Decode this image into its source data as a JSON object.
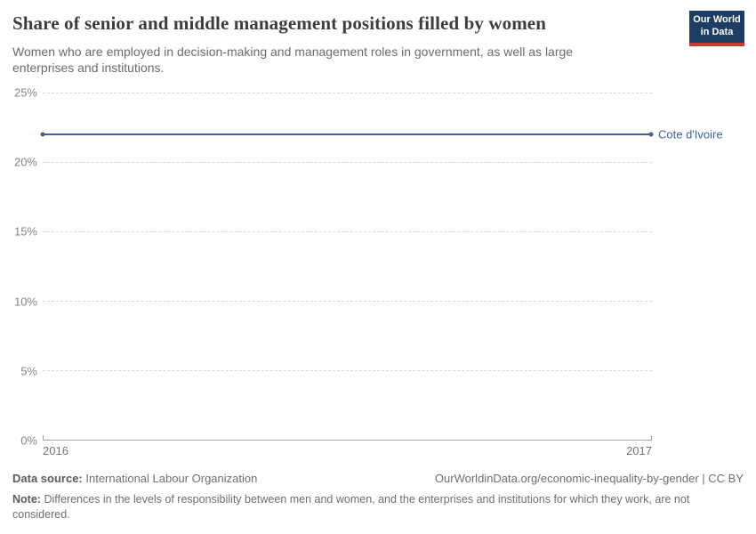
{
  "header": {
    "title": "Share of senior and middle management positions filled by women",
    "subtitle": "Women who are employed in decision-making and management roles in government, as well as large enterprises and institutions.",
    "logo": {
      "line1": "Our World",
      "line2": "in Data",
      "background": "#1d3d63",
      "accent": "#cb3a31"
    }
  },
  "chart_data": {
    "type": "line",
    "title": "Share of senior and middle management positions filled by women",
    "x": [
      2016,
      2017
    ],
    "xtick_labels": [
      "2016",
      "2017"
    ],
    "series": [
      {
        "name": "Cote d'Ivoire",
        "values": [
          22,
          22
        ],
        "color": "#3d639d"
      }
    ],
    "ylim": [
      0,
      25
    ],
    "yticks": [
      0,
      5,
      10,
      15,
      20,
      25
    ],
    "ytick_labels": [
      "0%",
      "5%",
      "10%",
      "15%",
      "20%",
      "25%"
    ],
    "xlabel": "",
    "ylabel": "",
    "grid": "horizontal-dashed",
    "legend_position": "end-of-line"
  },
  "footer": {
    "data_source_label": "Data source:",
    "data_source": "International Labour Organization",
    "citation": "OurWorldinData.org/economic-inequality-by-gender | CC BY",
    "note_label": "Note:",
    "note": "Differences in the levels of responsibility between men and women, and the enterprises and institutions for which they work, are not considered."
  },
  "colors": {
    "line": "#3d639d",
    "grid": "#d8d8d8",
    "axis": "#a3a3a3",
    "title_text": "#3d3d3d",
    "subtitle_text": "#6b6b6b",
    "tick_text": "#848484"
  }
}
